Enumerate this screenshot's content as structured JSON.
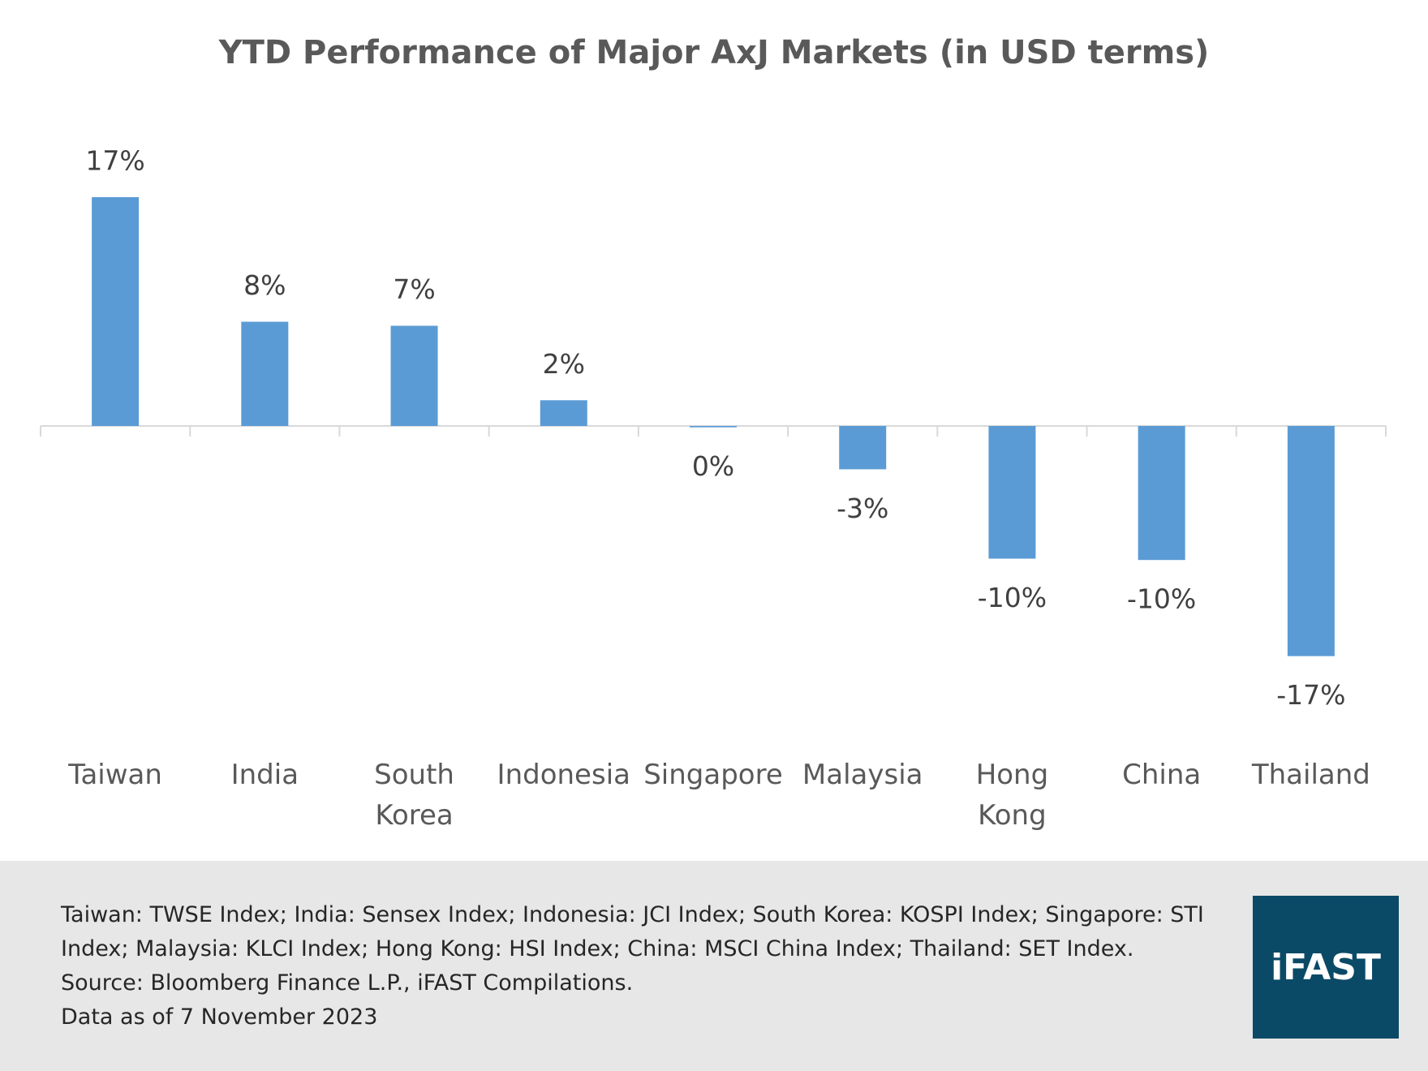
{
  "chart_data": {
    "type": "bar",
    "title": "YTD Performance of Major AxJ Markets (in USD terms)",
    "categories": [
      "Taiwan",
      "India",
      "South Korea",
      "Indonesia",
      "Singapore",
      "Malaysia",
      "Hong Kong",
      "China",
      "Thailand"
    ],
    "values": [
      16.9,
      7.7,
      7.4,
      1.9,
      -0.1,
      -3.2,
      -9.8,
      -9.9,
      -17.0
    ],
    "value_labels": [
      "17%",
      "8%",
      "7%",
      "2%",
      "0%",
      "-3%",
      "-10%",
      "-10%",
      "-17%"
    ],
    "color": "#5b9bd5"
  },
  "footer": {
    "notes": [
      "Taiwan: TWSE Index; India: Sensex Index; Indonesia: JCI Index; South Korea: KOSPI Index; Singapore: STI Index; Malaysia: KLCI Index; Hong Kong: HSI Index; China: MSCI China Index; Thailand: SET Index.",
      "Source: Bloomberg Finance L.P., iFAST Compilations.",
      "Data as of 7 November 2023"
    ],
    "logo": "iFAST"
  }
}
